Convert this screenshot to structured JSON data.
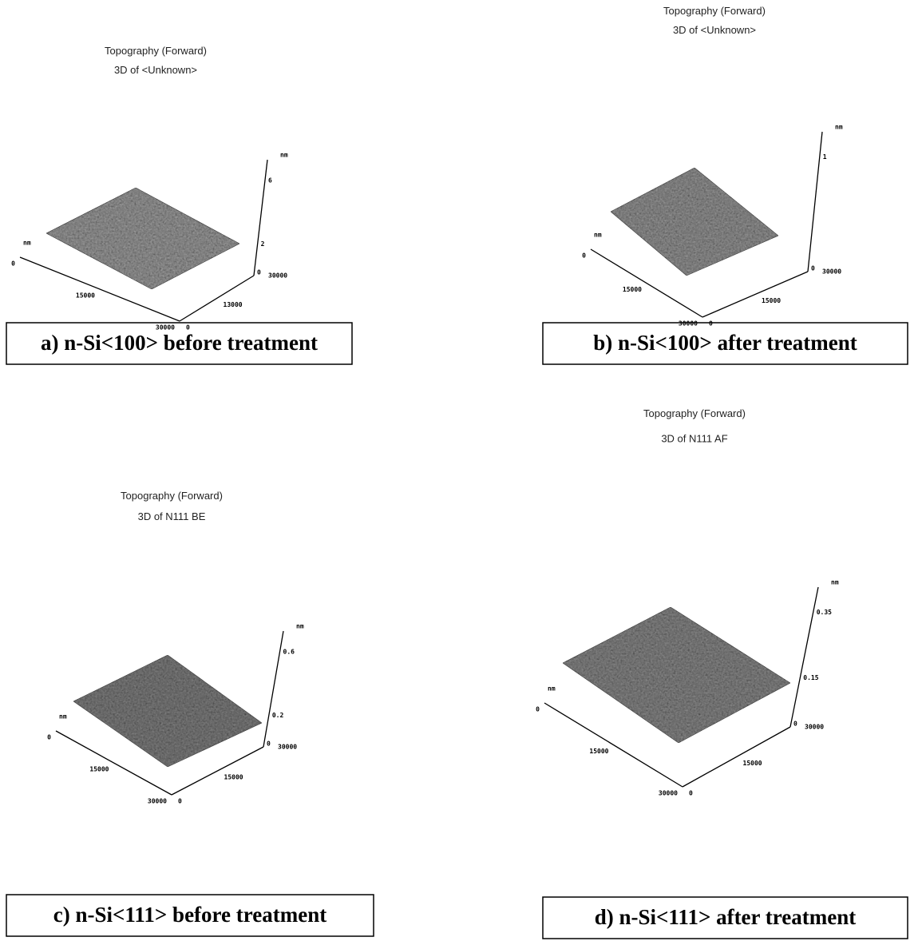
{
  "panels": [
    {
      "title": [
        "Topography (Forward)",
        "3D of <Unknown>"
      ],
      "z_unit": "nm",
      "z_ticks": [
        "6",
        "2",
        "0"
      ],
      "y_unit": "nm",
      "y_ticks": [
        "0",
        "15000",
        "30000"
      ],
      "x_ticks": [
        "0",
        "13000",
        "30000"
      ],
      "caption": "a) n-Si<100> before treatment"
    },
    {
      "title": [
        "Topography (Forward)",
        "3D of <Unknown>"
      ],
      "z_unit": "nm",
      "z_ticks": [
        "1",
        "0"
      ],
      "y_unit": "nm",
      "y_ticks": [
        "0",
        "15000",
        "30000"
      ],
      "x_ticks": [
        "0",
        "15000",
        "30000"
      ],
      "caption": "b) n-Si<100> after treatment"
    },
    {
      "title": [
        "Topography (Forward)",
        "3D of N111 BE"
      ],
      "z_unit": "nm",
      "z_ticks": [
        "0.6",
        "0.2",
        "0"
      ],
      "y_unit": "nm",
      "y_ticks": [
        "0",
        "15000",
        "30000"
      ],
      "x_ticks": [
        "0",
        "15000",
        "30000"
      ],
      "caption": "c) n-Si<111> before treatment"
    },
    {
      "title": [
        "Topography (Forward)",
        "3D of N111 AF"
      ],
      "z_unit": "nm",
      "z_ticks": [
        "0.35",
        "0.15",
        "0"
      ],
      "y_unit": "nm",
      "y_ticks": [
        "0",
        "15000",
        "30000"
      ],
      "x_ticks": [
        "0",
        "15000",
        "30000"
      ],
      "caption": "d) n-Si<111> after treatment"
    }
  ]
}
